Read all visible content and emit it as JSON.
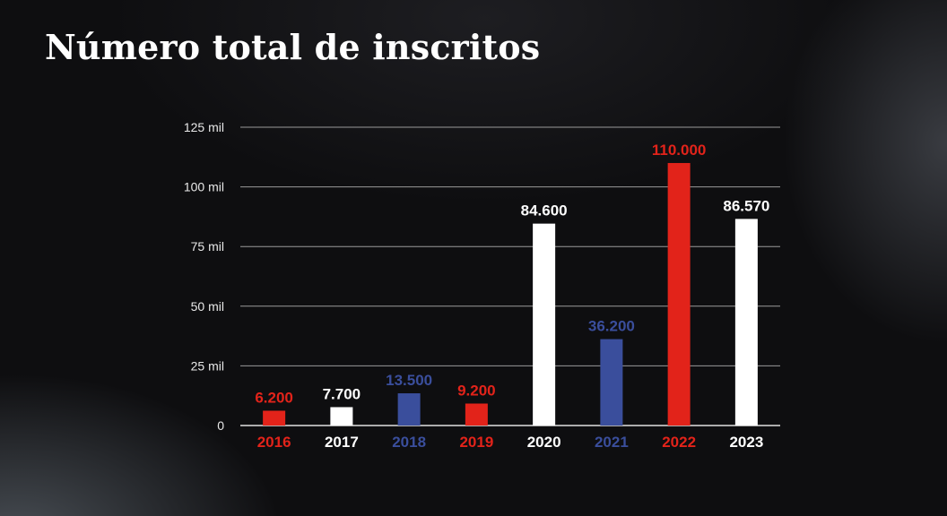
{
  "colors": {
    "red": "#e2231a",
    "white": "#ffffff",
    "blue": "#3a4e9c",
    "grid": "#9a9a9a",
    "baseline": "#e0e0e0"
  },
  "chart_data": {
    "type": "bar",
    "title": "Número total de inscritos",
    "xlabel": "",
    "ylabel": "",
    "ylim": [
      0,
      125000
    ],
    "y_ticks": [
      0,
      25000,
      50000,
      75000,
      100000,
      125000
    ],
    "y_tick_labels": [
      "0",
      "25 mil",
      "50 mil",
      "75 mil",
      "100 mil",
      "125 mil"
    ],
    "grid": true,
    "categories": [
      "2016",
      "2017",
      "2018",
      "2019",
      "2020",
      "2021",
      "2022",
      "2023"
    ],
    "values": [
      6200,
      7700,
      13500,
      9200,
      84600,
      36200,
      110000,
      86570
    ],
    "value_labels": [
      "6.200",
      "7.700",
      "13.500",
      "9.200",
      "84.600",
      "36.200",
      "110.000",
      "86.570"
    ],
    "bar_colors": [
      "red",
      "white",
      "blue",
      "red",
      "white",
      "blue",
      "red",
      "white"
    ]
  }
}
